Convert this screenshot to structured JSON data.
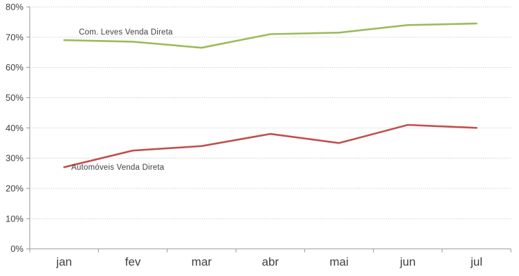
{
  "chart_data": {
    "type": "line",
    "categories": [
      "jan",
      "fev",
      "mar",
      "abr",
      "mai",
      "jun",
      "jul"
    ],
    "series": [
      {
        "name": "Com. Leves Venda Direta",
        "color": "#9BBB59",
        "values": [
          69,
          68.5,
          66.5,
          71,
          71.5,
          74,
          74.5
        ]
      },
      {
        "name": "Automóveis Venda Direta",
        "color": "#C0504D",
        "values": [
          27,
          32.5,
          34,
          38,
          35,
          41,
          40
        ]
      }
    ],
    "title": "",
    "xlabel": "",
    "ylabel": "",
    "ylim": [
      0,
      80
    ],
    "ytick_step": 10,
    "ytick_labels": [
      "0%",
      "10%",
      "20%",
      "30%",
      "40%",
      "50%",
      "60%",
      "70%",
      "80%"
    ],
    "grid": "horizontal-dotted",
    "legend_position": "inline-series-labels"
  },
  "colors": {
    "background": "#FFFFFF",
    "grid": "#BDBDBD",
    "axis": "#A6A6A6",
    "tick": "#A6A6A6",
    "text": "#3F3F3F"
  }
}
